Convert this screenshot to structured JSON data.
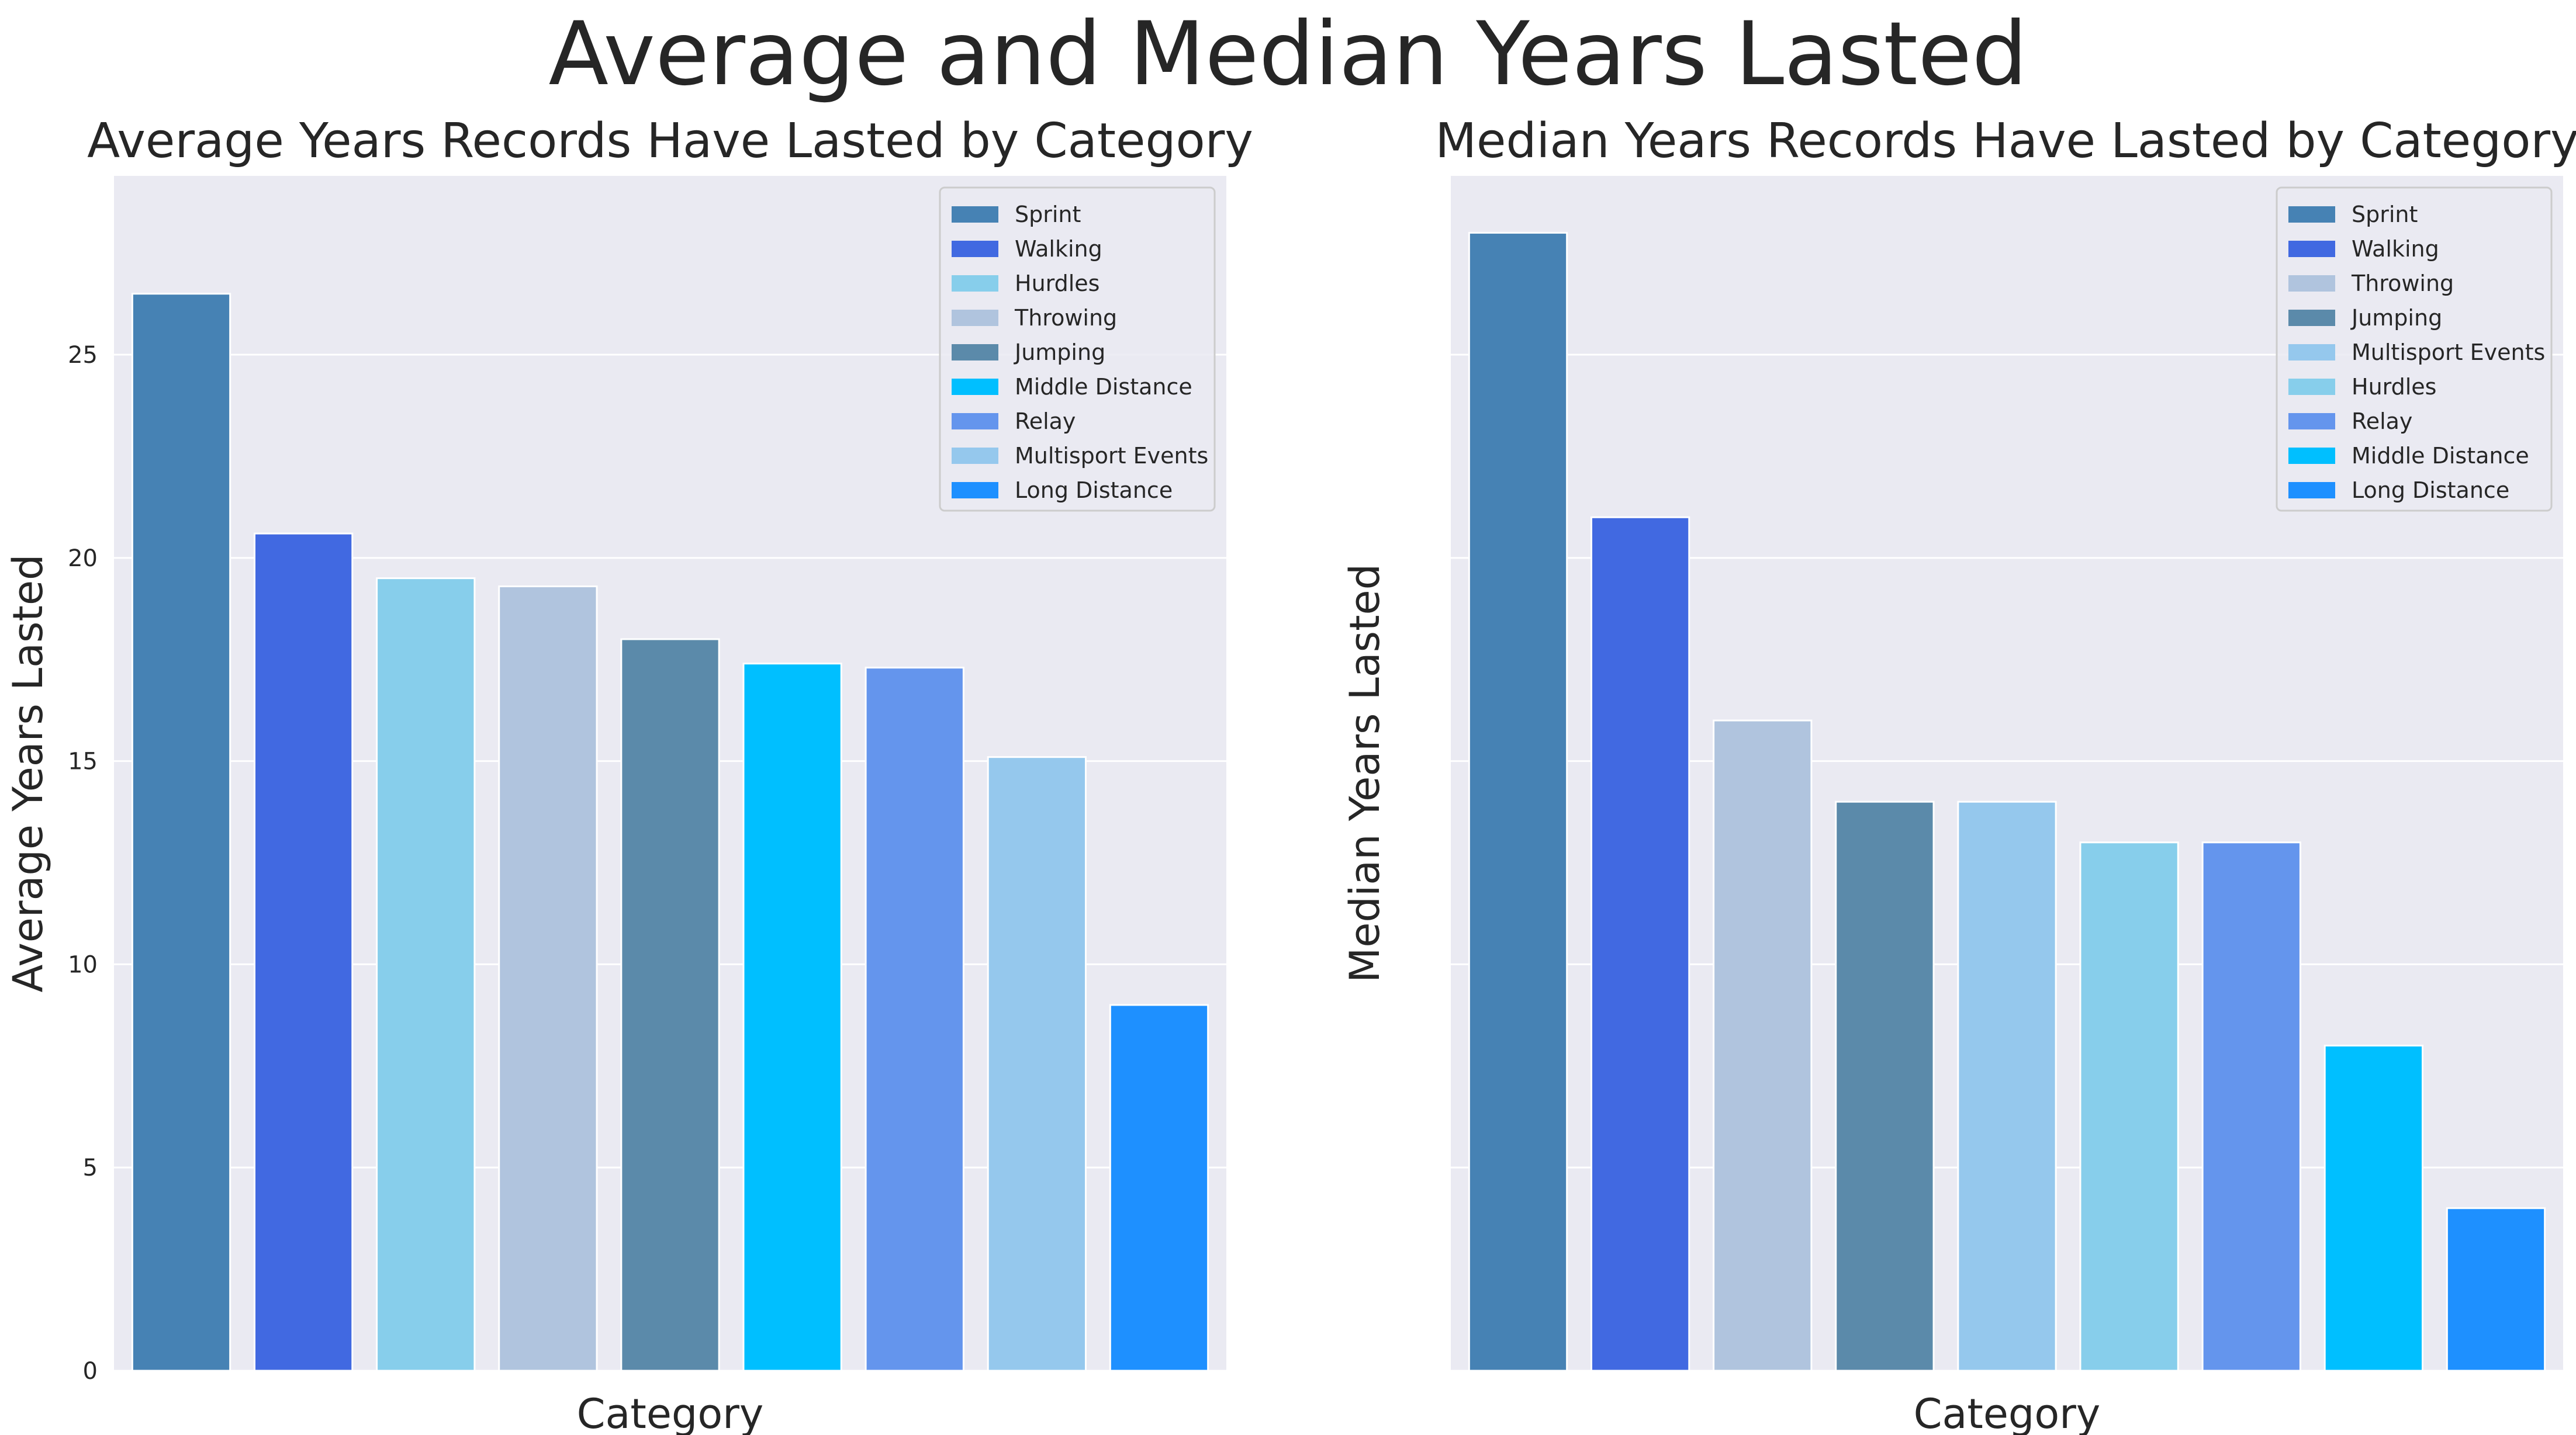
{
  "figure": {
    "title": "Average and Median Years Lasted"
  },
  "colors": {
    "panel_bg": "#eaeaf2",
    "grid": "#ffffff",
    "text": "#262626",
    "tick": "#262626"
  },
  "chart_data": [
    {
      "type": "bar",
      "title": "Average Years Records Have Lasted by Category",
      "xlabel": "Category",
      "ylabel": "Average Years Lasted",
      "ylim": [
        0,
        29.4
      ],
      "yticks": [
        0,
        5,
        10,
        15,
        20,
        25
      ],
      "show_ytick_labels": true,
      "grid": "y",
      "legend": "upper right",
      "categories": [
        "Sprint",
        "Walking",
        "Hurdles",
        "Throwing",
        "Jumping",
        "Middle Distance",
        "Relay",
        "Multisport Events",
        "Long Distance"
      ],
      "values": [
        26.5,
        20.6,
        19.5,
        19.3,
        18.0,
        17.4,
        17.3,
        15.1,
        9.0
      ],
      "colors": [
        "#4682b4",
        "#4169e1",
        "#87ceeb",
        "#b0c4de",
        "#5b8aaa",
        "#00bfff",
        "#6495ed",
        "#95c8ed",
        "#1e90ff"
      ]
    },
    {
      "type": "bar",
      "title": "Median Years Records Have Lasted by Category",
      "xlabel": "Category",
      "ylabel": "Median Years Lasted",
      "ylim": [
        0,
        29.4
      ],
      "yticks": [
        0,
        5,
        10,
        15,
        20,
        25
      ],
      "show_ytick_labels": false,
      "grid": "y",
      "legend": "upper right",
      "categories": [
        "Sprint",
        "Walking",
        "Throwing",
        "Jumping",
        "Multisport Events",
        "Hurdles",
        "Relay",
        "Middle Distance",
        "Long Distance"
      ],
      "values": [
        28,
        21,
        16,
        14,
        14,
        13,
        13,
        8,
        4
      ],
      "colors": [
        "#4682b4",
        "#4169e1",
        "#b0c4de",
        "#5b8aaa",
        "#95c8ed",
        "#87ceeb",
        "#6495ed",
        "#00bfff",
        "#1e90ff"
      ]
    }
  ]
}
